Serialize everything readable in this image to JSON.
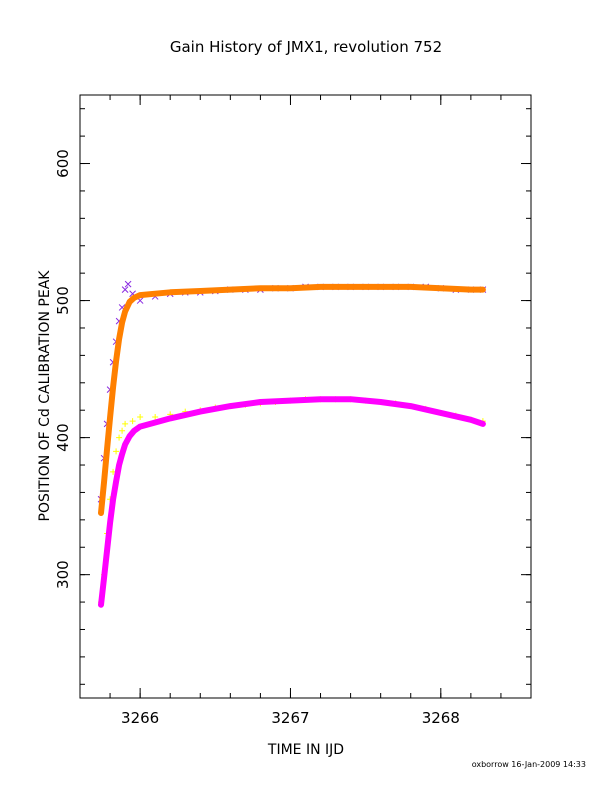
{
  "chart_data": {
    "type": "scatter",
    "title": "Gain History of JMX1, revolution 752",
    "xlabel": "TIME IN IJD",
    "ylabel": "POSITION OF Cd CALIBRATION PEAK",
    "xlim": [
      3265.6,
      3268.6
    ],
    "ylim": [
      210,
      650
    ],
    "x_ticks": [
      3266,
      3267,
      3268
    ],
    "x_tick_labels": [
      "3266",
      "3267",
      "3268"
    ],
    "y_ticks": [
      300,
      400,
      500,
      600
    ],
    "y_tick_labels": [
      "300",
      "400",
      "500",
      "600"
    ],
    "grid": false,
    "series": [
      {
        "marker": "x",
        "color": "#8a2be2",
        "x": [
          3265.74,
          3265.76,
          3265.78,
          3265.8,
          3265.82,
          3265.84,
          3265.86,
          3265.88,
          3265.9,
          3265.92,
          3265.95,
          3266.0,
          3266.1,
          3266.2,
          3266.3,
          3266.4,
          3266.5,
          3266.6,
          3266.7,
          3266.8,
          3266.9,
          3267.0,
          3267.1,
          3267.2,
          3267.3,
          3267.4,
          3267.5,
          3267.6,
          3267.7,
          3267.8,
          3267.9,
          3268.0,
          3268.1,
          3268.2,
          3268.28
        ],
        "values": [
          355,
          385,
          410,
          435,
          455,
          470,
          485,
          495,
          508,
          512,
          505,
          500,
          503,
          505,
          506,
          506,
          507,
          508,
          508,
          508,
          509,
          509,
          510,
          510,
          510,
          510,
          510,
          510,
          510,
          510,
          510,
          509,
          508,
          508,
          508
        ]
      },
      {
        "marker": "+",
        "color": "#ffff00",
        "x": [
          3265.74,
          3265.76,
          3265.78,
          3265.8,
          3265.82,
          3265.84,
          3265.86,
          3265.88,
          3265.9,
          3265.95,
          3266.0,
          3266.1,
          3266.2,
          3266.3,
          3266.4,
          3266.5,
          3266.6,
          3266.7,
          3266.8,
          3266.9,
          3267.0,
          3267.1,
          3267.2,
          3267.3,
          3267.4,
          3267.5,
          3267.6,
          3267.7,
          3267.8,
          3267.9,
          3268.0,
          3268.1,
          3268.2,
          3268.28
        ],
        "values": [
          280,
          300,
          330,
          355,
          375,
          390,
          400,
          405,
          410,
          412,
          415,
          415,
          417,
          419,
          420,
          422,
          423,
          424,
          425,
          426,
          427,
          428,
          428,
          428,
          428,
          427,
          426,
          425,
          423,
          421,
          418,
          416,
          413,
          412
        ]
      },
      {
        "type": "line",
        "color": "#ff8000",
        "x": [
          3265.74,
          3265.76,
          3265.78,
          3265.8,
          3265.82,
          3265.84,
          3265.86,
          3265.88,
          3265.9,
          3265.93,
          3265.96,
          3266.0,
          3266.1,
          3266.2,
          3266.4,
          3266.6,
          3266.8,
          3267.0,
          3267.2,
          3267.4,
          3267.6,
          3267.8,
          3268.0,
          3268.2,
          3268.28
        ],
        "values": [
          345,
          368,
          392,
          415,
          437,
          456,
          472,
          484,
          492,
          499,
          502,
          504,
          505,
          506,
          507,
          508,
          509,
          509,
          510,
          510,
          510,
          510,
          509,
          508,
          508
        ]
      },
      {
        "type": "line",
        "color": "#ff00ff",
        "x": [
          3265.74,
          3265.76,
          3265.78,
          3265.8,
          3265.82,
          3265.84,
          3265.86,
          3265.88,
          3265.9,
          3265.93,
          3265.96,
          3266.0,
          3266.1,
          3266.2,
          3266.4,
          3266.6,
          3266.8,
          3267.0,
          3267.2,
          3267.4,
          3267.6,
          3267.8,
          3268.0,
          3268.2,
          3268.28
        ],
        "values": [
          278,
          298,
          318,
          338,
          355,
          368,
          380,
          388,
          395,
          401,
          405,
          408,
          411,
          414,
          419,
          423,
          426,
          427,
          428,
          428,
          426,
          423,
          418,
          413,
          410
        ]
      }
    ]
  },
  "footer": {
    "credit": "oxborrow 16-Jan-2009 14:33"
  },
  "style": {
    "axis_color": "#000000",
    "background": "#ffffff"
  }
}
